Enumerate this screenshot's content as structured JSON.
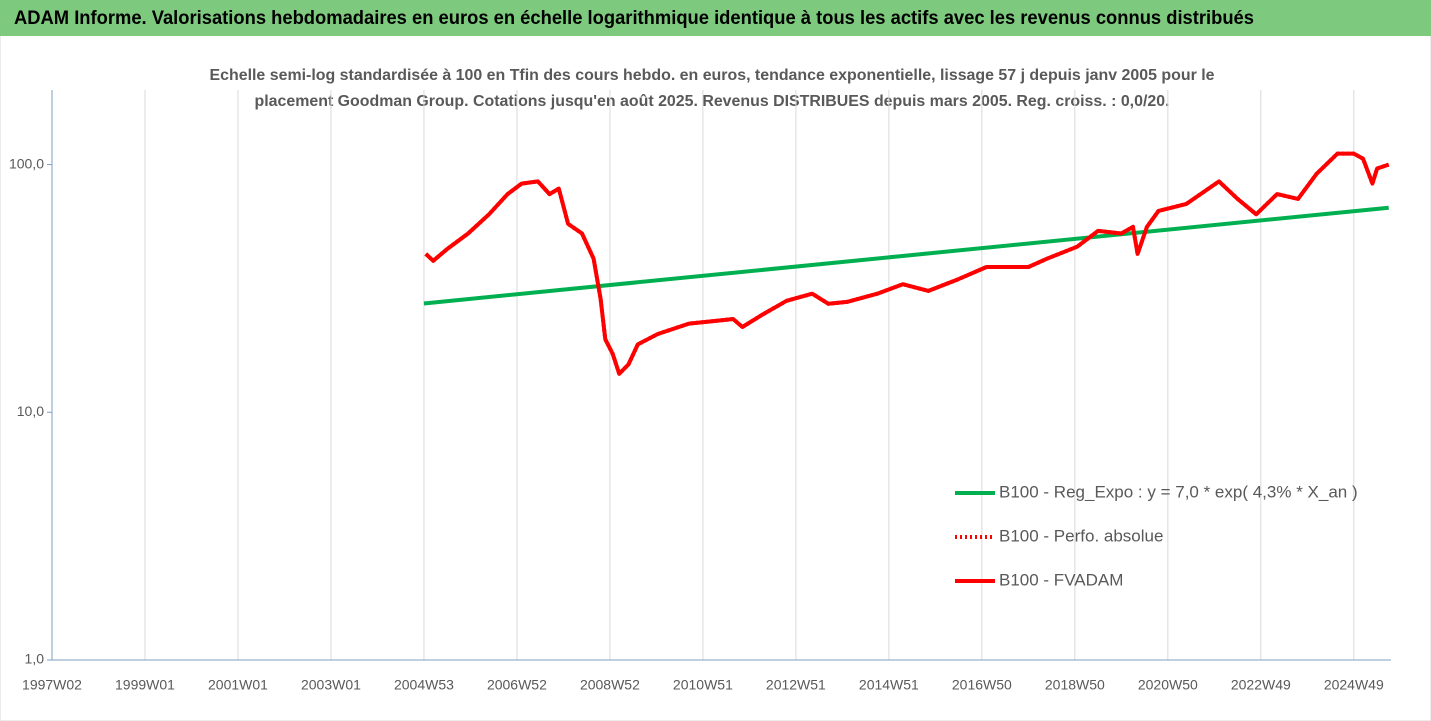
{
  "chart_data": {
    "type": "line",
    "title": "ADAM Informe. Valorisations hebdomadaires en euros en échelle logarithmique identique à tous les actifs avec les revenus connus distribués",
    "subtitle": [
      "Echelle semi-log standardisée à 100 en Tfin des cours hebdo. en euros, tendance exponentielle, lissage 57 j depuis janv 2005 pour le",
      "placement Goodman Group. Cotations jusqu'en août 2025. Revenus DISTRIBUES depuis mars 2005. Reg. croiss. : 0,0/20."
    ],
    "log_scale": true,
    "grid": true,
    "legend": "right",
    "xlim": [
      1997.0,
      2025.8
    ],
    "xticks": [
      {
        "value": 1997.0,
        "label": "1997W02"
      },
      {
        "value": 1999.0,
        "label": "1999W01"
      },
      {
        "value": 2001.0,
        "label": "2001W01"
      },
      {
        "value": 2003.0,
        "label": "2003W01"
      },
      {
        "value": 2005.0,
        "label": "2004W53"
      },
      {
        "value": 2007.0,
        "label": "2006W52"
      },
      {
        "value": 2009.0,
        "label": "2008W52"
      },
      {
        "value": 2011.0,
        "label": "2010W51"
      },
      {
        "value": 2013.0,
        "label": "2012W51"
      },
      {
        "value": 2015.0,
        "label": "2014W51"
      },
      {
        "value": 2017.0,
        "label": "2016W50"
      },
      {
        "value": 2019.0,
        "label": "2018W50"
      },
      {
        "value": 2021.0,
        "label": "2020W50"
      },
      {
        "value": 2023.0,
        "label": "2022W49"
      },
      {
        "value": 2025.0,
        "label": "2024W49"
      }
    ],
    "ylim": [
      1,
      200
    ],
    "yticks": [
      {
        "value": 1,
        "label": "1,0"
      },
      {
        "value": 10,
        "label": "10,0"
      },
      {
        "value": 100,
        "label": "100,0"
      }
    ],
    "series": [
      {
        "name": "B100 - Reg_Expo : y = 7,0 * exp( 4,3% *  X_an )",
        "color": "#00b050",
        "style": "solid",
        "x": [
          2005.0,
          2025.75
        ],
        "values": [
          27.5,
          67
        ]
      },
      {
        "name": "B100 - Perfo. absolue",
        "color": "#ff0000",
        "style": "dotted",
        "x": [
          2005.04,
          2005.2,
          2005.5,
          2005.95,
          2006.4,
          2006.8,
          2007.1,
          2007.45,
          2007.7,
          2007.9,
          2008.1,
          2008.4,
          2008.65,
          2008.8,
          2008.9,
          2009.06,
          2009.2,
          2009.4,
          2009.6,
          2010.03,
          2010.7,
          2011.3,
          2011.65,
          2011.85,
          2012.3,
          2012.8,
          2013.35,
          2013.7,
          2014.1,
          2014.75,
          2015.3,
          2015.85,
          2016.5,
          2017.1,
          2018.0,
          2018.4,
          2019.05,
          2019.5,
          2020.0,
          2020.25,
          2020.35,
          2020.55,
          2020.8,
          2021.4,
          2022.1,
          2022.5,
          2022.9,
          2023.35,
          2023.8,
          2024.2,
          2024.65,
          2025.0,
          2025.2,
          2025.4,
          2025.5,
          2025.75
        ],
        "values": [
          43.6,
          40.9,
          45.6,
          52.7,
          63,
          76,
          83.8,
          85.5,
          76,
          80,
          57.6,
          52.7,
          41.7,
          28.7,
          19.7,
          17.2,
          14.3,
          15.6,
          18.8,
          20.7,
          22.8,
          23.4,
          23.8,
          22.1,
          24.9,
          28.2,
          30.1,
          27.4,
          27.9,
          30.1,
          32.9,
          30.9,
          34.5,
          38.6,
          38.6,
          41.7,
          46.6,
          54,
          52.7,
          56,
          43.6,
          56,
          65,
          69.4,
          85.5,
          72.7,
          63,
          76,
          72.7,
          91.8,
          110.7,
          110.7,
          105.5,
          83.8,
          96.4,
          100
        ]
      },
      {
        "name": "B100 - FVADAM",
        "color": "#ff0000",
        "style": "solid",
        "x": [
          2005.04,
          2005.2,
          2005.5,
          2005.95,
          2006.4,
          2006.8,
          2007.1,
          2007.45,
          2007.7,
          2007.9,
          2008.1,
          2008.4,
          2008.65,
          2008.8,
          2008.9,
          2009.06,
          2009.2,
          2009.4,
          2009.6,
          2010.03,
          2010.7,
          2011.3,
          2011.65,
          2011.85,
          2012.3,
          2012.8,
          2013.35,
          2013.7,
          2014.1,
          2014.75,
          2015.3,
          2015.85,
          2016.5,
          2017.1,
          2018.0,
          2018.4,
          2019.05,
          2019.5,
          2020.0,
          2020.25,
          2020.35,
          2020.55,
          2020.8,
          2021.4,
          2022.1,
          2022.5,
          2022.9,
          2023.35,
          2023.8,
          2024.2,
          2024.65,
          2025.0,
          2025.2,
          2025.4,
          2025.5,
          2025.75
        ],
        "values": [
          43.6,
          40.9,
          45.6,
          52.7,
          63,
          76,
          83.8,
          85.5,
          76,
          80,
          57.6,
          52.7,
          41.7,
          28.7,
          19.7,
          17.2,
          14.3,
          15.6,
          18.8,
          20.7,
          22.8,
          23.4,
          23.8,
          22.1,
          24.9,
          28.2,
          30.1,
          27.4,
          27.9,
          30.1,
          32.9,
          30.9,
          34.5,
          38.6,
          38.6,
          41.7,
          46.6,
          54,
          52.7,
          56,
          43.6,
          56,
          65,
          69.4,
          85.5,
          72.7,
          63,
          76,
          72.7,
          91.8,
          110.7,
          110.7,
          105.5,
          83.8,
          96.4,
          100
        ]
      }
    ]
  }
}
